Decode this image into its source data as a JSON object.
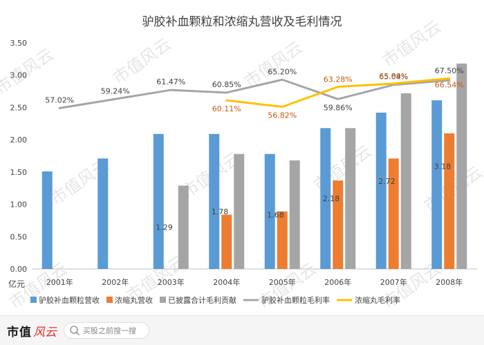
{
  "chart_data": {
    "type": "bar",
    "title": "驴胶补血颗粒和浓缩丸营收及毛利情况",
    "ylabel": "亿元",
    "ylim": [
      0,
      3.5
    ],
    "yticks": [
      "0.00",
      "0.50",
      "1.00",
      "1.50",
      "2.00",
      "2.50",
      "3.00",
      "3.50"
    ],
    "grid": false,
    "legend_position": "bottom",
    "categories": [
      "2001年",
      "2002年",
      "2003年",
      "2004年",
      "2005年",
      "2006年",
      "2007年",
      "2008年"
    ],
    "series": [
      {
        "name": "驴胶补血颗粒营收",
        "kind": "bar",
        "color": "#5b9bd5",
        "values": [
          1.51,
          1.71,
          2.09,
          2.09,
          1.78,
          2.18,
          2.42,
          2.61
        ],
        "labels": [
          null,
          null,
          null,
          null,
          null,
          null,
          null,
          null
        ]
      },
      {
        "name": "浓缩丸营收",
        "kind": "bar",
        "color": "#ed7d31",
        "values": [
          null,
          null,
          null,
          0.84,
          0.89,
          1.37,
          1.71,
          2.1
        ],
        "labels": [
          null,
          null,
          null,
          null,
          null,
          null,
          null,
          null
        ]
      },
      {
        "name": "已披露合计毛利贡献",
        "kind": "bar",
        "color": "#a5a5a5",
        "values": [
          null,
          null,
          1.29,
          1.78,
          1.68,
          2.18,
          2.72,
          3.18
        ],
        "labels": [
          null,
          null,
          "1.29",
          "1.78",
          "1.68",
          "2.18",
          "2.72",
          "3.18"
        ]
      },
      {
        "name": "驴胶补血颗粒毛利率",
        "kind": "line",
        "color": "#a5a5a5",
        "label_color": "#404040",
        "values": [
          2.49,
          2.63,
          2.77,
          2.73,
          2.93,
          2.63,
          2.85,
          2.92
        ],
        "labels": [
          "57.02%",
          "59.24%",
          "61.47%",
          "60.85%",
          "65.20%",
          "59.86%",
          "65.04%",
          "67.50%"
        ]
      },
      {
        "name": "浓缩丸毛利率",
        "kind": "line",
        "color": "#ffc000",
        "label_color": "#c55a11",
        "values": [
          null,
          null,
          null,
          2.61,
          2.51,
          2.82,
          2.87,
          2.95
        ],
        "labels": [
          null,
          null,
          null,
          "60.11%",
          "56.82%",
          "63.28%",
          "65.89%",
          "66.54%"
        ]
      }
    ]
  },
  "watermark": {
    "text": "市值风云",
    "color": "#e6e6e6"
  },
  "footer": {
    "brand": "市值",
    "brand_script": "风云",
    "search_placeholder": "买股之前搜一搜"
  }
}
